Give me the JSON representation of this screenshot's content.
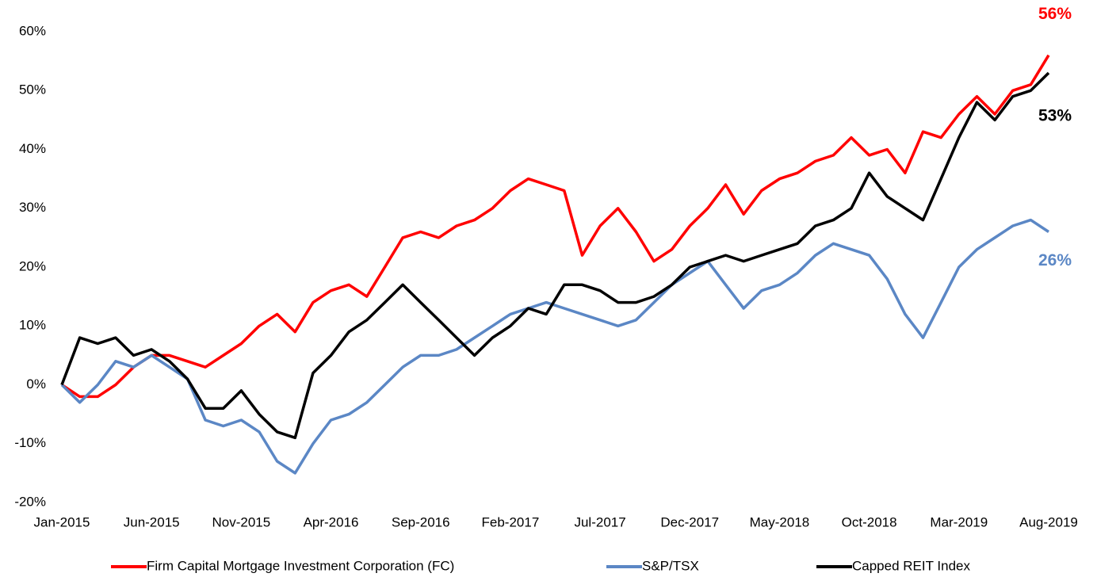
{
  "chart_data": {
    "type": "line",
    "categories": [
      "Jan-2015",
      null,
      null,
      null,
      null,
      "Jun-2015",
      null,
      null,
      null,
      null,
      "Nov-2015",
      null,
      null,
      null,
      null,
      "Apr-2016",
      null,
      null,
      null,
      null,
      "Sep-2016",
      null,
      null,
      null,
      null,
      "Feb-2017",
      null,
      null,
      null,
      null,
      "Jul-2017",
      null,
      null,
      null,
      null,
      "Dec-2017",
      null,
      null,
      null,
      null,
      "May-2018",
      null,
      null,
      null,
      null,
      "Oct-2018",
      null,
      null,
      null,
      null,
      "Mar-2019",
      null,
      null,
      null,
      null,
      "Aug-2019"
    ],
    "series": [
      {
        "name": "Firm Capital Mortgage Investment Corporation (FC)",
        "color": "#ff0000",
        "values": [
          0,
          -2,
          -2,
          0,
          3,
          5,
          5,
          4,
          3,
          5,
          7,
          10,
          12,
          9,
          14,
          16,
          17,
          15,
          20,
          25,
          26,
          25,
          27,
          28,
          30,
          33,
          35,
          34,
          33,
          22,
          27,
          30,
          26,
          21,
          23,
          27,
          30,
          34,
          29,
          33,
          35,
          36,
          38,
          39,
          42,
          39,
          40,
          36,
          43,
          42,
          46,
          49,
          46,
          50,
          51,
          56
        ],
        "value_labels": [
          null,
          null,
          null,
          null,
          null,
          null,
          null,
          null,
          null,
          null,
          null,
          null,
          null,
          null,
          null,
          null,
          null,
          null,
          null,
          null,
          null,
          null,
          null,
          null,
          null,
          null,
          null,
          null,
          null,
          null,
          null,
          null,
          null,
          null,
          null,
          null,
          null,
          null,
          null,
          null,
          null,
          null,
          null,
          null,
          null,
          null,
          null,
          null,
          null,
          null,
          null,
          null,
          null,
          null,
          null,
          "56%"
        ]
      },
      {
        "name": "S&P/TSX",
        "color": "#5b87c5",
        "values": [
          0,
          -3,
          0,
          4,
          3,
          5,
          3,
          1,
          -6,
          -7,
          -6,
          -8,
          -13,
          -15,
          -10,
          -6,
          -5,
          -3,
          0,
          3,
          5,
          5,
          6,
          8,
          10,
          12,
          13,
          14,
          13,
          12,
          11,
          10,
          11,
          14,
          17,
          19,
          21,
          17,
          13,
          16,
          17,
          19,
          22,
          24,
          23,
          22,
          18,
          12,
          8,
          14,
          20,
          23,
          25,
          27,
          28,
          26
        ],
        "value_labels": [
          null,
          null,
          null,
          null,
          null,
          null,
          null,
          null,
          null,
          null,
          null,
          null,
          null,
          null,
          null,
          null,
          null,
          null,
          null,
          null,
          null,
          null,
          null,
          null,
          null,
          null,
          null,
          null,
          null,
          null,
          null,
          null,
          null,
          null,
          null,
          null,
          null,
          null,
          null,
          null,
          null,
          null,
          null,
          null,
          null,
          null,
          null,
          null,
          null,
          null,
          null,
          null,
          null,
          null,
          null,
          "26%"
        ]
      },
      {
        "name": "Capped REIT Index",
        "color": "#000000",
        "values": [
          0,
          8,
          7,
          8,
          5,
          6,
          4,
          1,
          -4,
          -4,
          -1,
          -5,
          -8,
          -9,
          2,
          5,
          9,
          11,
          14,
          17,
          14,
          11,
          8,
          5,
          8,
          10,
          13,
          12,
          17,
          17,
          16,
          14,
          14,
          15,
          17,
          20,
          21,
          22,
          21,
          22,
          23,
          24,
          27,
          28,
          30,
          36,
          32,
          30,
          28,
          35,
          42,
          48,
          45,
          49,
          50,
          53
        ],
        "value_labels": [
          null,
          null,
          null,
          null,
          null,
          null,
          null,
          null,
          null,
          null,
          null,
          null,
          null,
          null,
          null,
          null,
          null,
          null,
          null,
          null,
          null,
          null,
          null,
          null,
          null,
          null,
          null,
          null,
          null,
          null,
          null,
          null,
          null,
          null,
          null,
          null,
          null,
          null,
          null,
          null,
          null,
          null,
          null,
          null,
          null,
          null,
          null,
          null,
          null,
          null,
          null,
          null,
          null,
          null,
          null,
          "53%"
        ]
      }
    ],
    "ylim": [
      -20,
      60
    ],
    "yticks": [
      {
        "value": -20,
        "label": "-20%"
      },
      {
        "value": -10,
        "label": "-10%"
      },
      {
        "value": 0,
        "label": "0%"
      },
      {
        "value": 10,
        "label": "10%"
      },
      {
        "value": 20,
        "label": "20%"
      },
      {
        "value": 30,
        "label": "30%"
      },
      {
        "value": 40,
        "label": "40%"
      },
      {
        "value": 50,
        "label": "50%"
      },
      {
        "value": 60,
        "label": "60%"
      }
    ],
    "grid": false,
    "legend": "bottom"
  }
}
